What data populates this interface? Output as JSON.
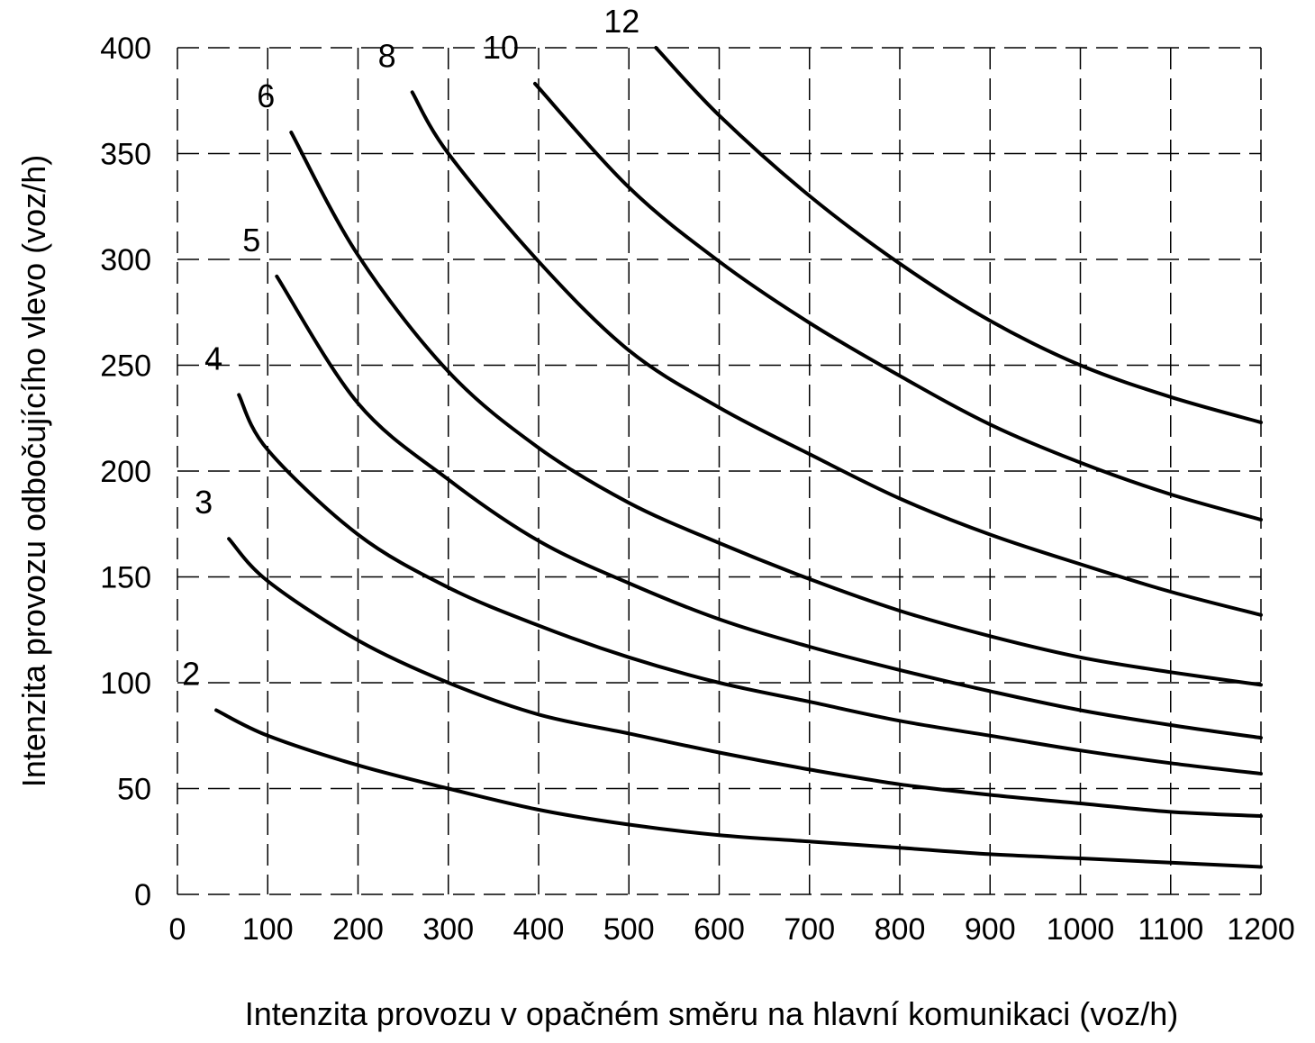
{
  "chart_data": {
    "type": "line",
    "title": "",
    "xlabel": "Intenzita provozu v opačném směru na hlavní komunikaci (voz/h)",
    "ylabel": "Intenzita provozu odbočujícího  vlevo (voz/h)",
    "xlim": [
      0,
      1200
    ],
    "ylim": [
      0,
      400
    ],
    "x_ticks": [
      "0",
      "100",
      "200",
      "300",
      "400",
      "500",
      "600",
      "700",
      "800",
      "900",
      "1000",
      "1100",
      "1200"
    ],
    "y_ticks": [
      "0",
      "50",
      "100",
      "150",
      "200",
      "250",
      "300",
      "350",
      "400"
    ],
    "grid": true,
    "series": [
      {
        "name": "2",
        "x": [
          43,
          100,
          200,
          300,
          400,
          500,
          600,
          700,
          800,
          900,
          1000,
          1100,
          1200
        ],
        "y": [
          87,
          75,
          61,
          50,
          40,
          33,
          28,
          25,
          22,
          19,
          17,
          15,
          13
        ]
      },
      {
        "name": "3",
        "x": [
          57,
          100,
          200,
          300,
          400,
          500,
          600,
          700,
          800,
          900,
          1000,
          1100,
          1200
        ],
        "y": [
          168,
          148,
          120,
          100,
          85,
          76,
          67,
          59,
          52,
          47,
          43,
          39,
          37
        ]
      },
      {
        "name": "4",
        "x": [
          68,
          100,
          200,
          300,
          400,
          500,
          600,
          700,
          800,
          900,
          1000,
          1100,
          1200
        ],
        "y": [
          236,
          210,
          170,
          145,
          127,
          112,
          100,
          91,
          82,
          75,
          68,
          62,
          57
        ]
      },
      {
        "name": "5",
        "x": [
          110,
          200,
          300,
          400,
          500,
          600,
          700,
          800,
          900,
          1000,
          1100,
          1200
        ],
        "y": [
          292,
          232,
          196,
          167,
          147,
          130,
          117,
          106,
          96,
          87,
          80,
          74
        ]
      },
      {
        "name": "6",
        "x": [
          126,
          200,
          300,
          400,
          500,
          600,
          700,
          800,
          900,
          1000,
          1100,
          1200
        ],
        "y": [
          360,
          302,
          247,
          211,
          185,
          166,
          149,
          134,
          122,
          112,
          105,
          99
        ]
      },
      {
        "name": "8",
        "x": [
          260,
          300,
          400,
          500,
          600,
          700,
          800,
          900,
          1000,
          1100,
          1200
        ],
        "y": [
          379,
          350,
          299,
          257,
          230,
          208,
          187,
          170,
          156,
          143,
          132
        ]
      },
      {
        "name": "10",
        "x": [
          396,
          500,
          600,
          700,
          800,
          900,
          1000,
          1100,
          1200
        ],
        "y": [
          383,
          334,
          299,
          270,
          245,
          222,
          204,
          189,
          177
        ]
      },
      {
        "name": "12",
        "x": [
          530,
          600,
          700,
          800,
          900,
          1000,
          1100,
          1200
        ],
        "y": [
          400,
          368,
          330,
          298,
          271,
          250,
          235,
          223
        ]
      }
    ]
  }
}
